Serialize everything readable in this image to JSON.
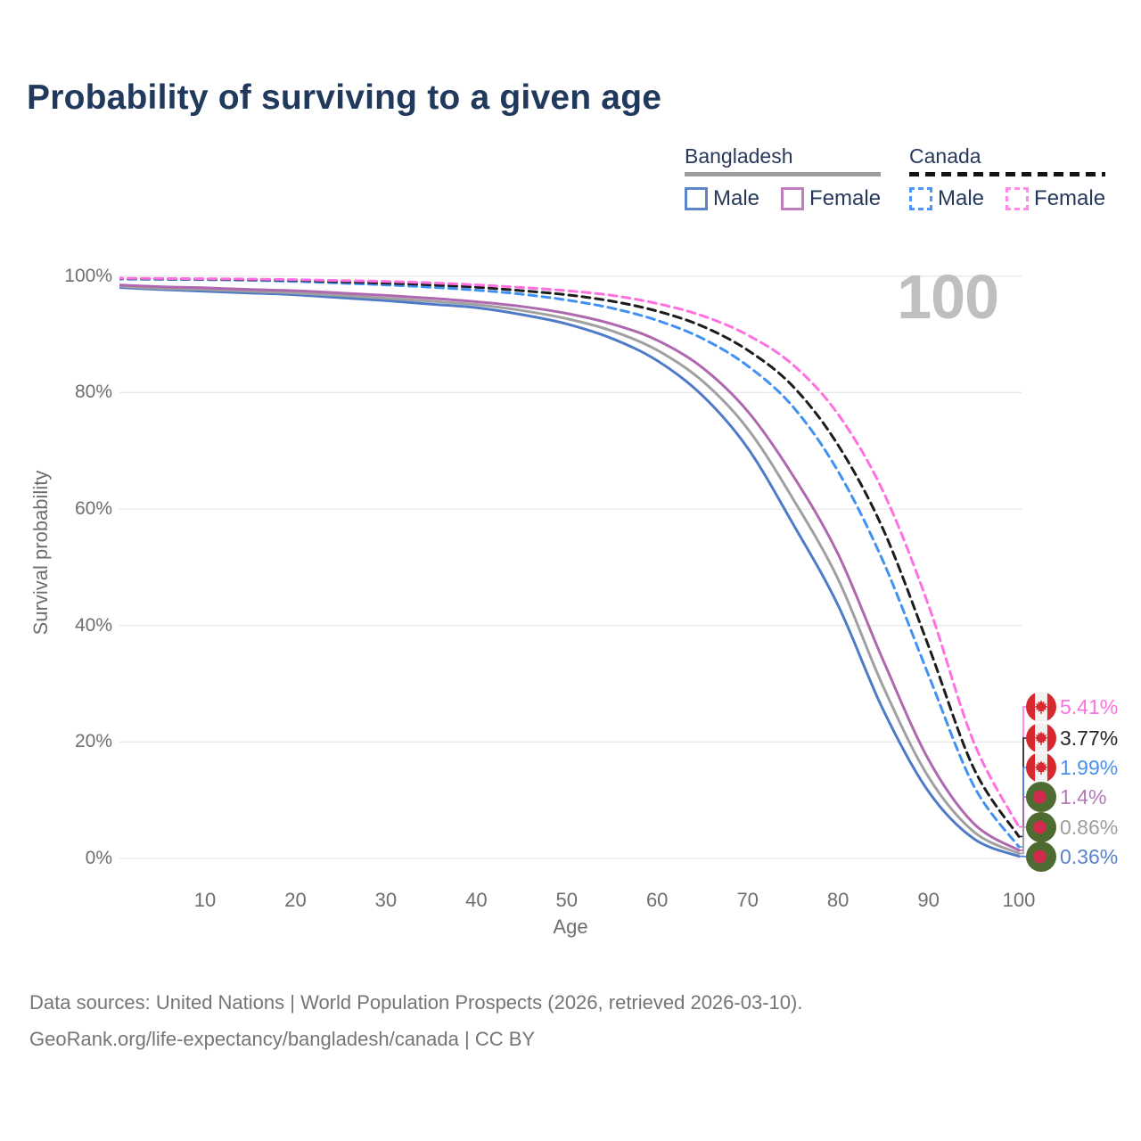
{
  "title": "Probability of surviving to a given age",
  "watermark": "100",
  "colors": {
    "title_text": "#21395c",
    "axis_text": "#6e6e6e",
    "gridline": "#e8e8e8",
    "watermark": "#bfbfbf",
    "footer_text": "#757575"
  },
  "legend": {
    "groups": [
      {
        "name": "Bangladesh",
        "line_style": "solid",
        "underline_color": "#9e9e9e",
        "items": [
          {
            "label": "Male",
            "color": "#5b84c6",
            "dashed": false
          },
          {
            "label": "Female",
            "color": "#c07fbc",
            "dashed": false
          }
        ]
      },
      {
        "name": "Canada",
        "line_style": "dashed",
        "underline_color": "#141414",
        "items": [
          {
            "label": "Male",
            "color": "#4d94ff",
            "dashed": true
          },
          {
            "label": "Female",
            "color": "#ff8ae8",
            "dashed": true
          }
        ]
      }
    ]
  },
  "chart_data": {
    "type": "line",
    "title": "Probability of surviving to a given age",
    "xlabel": "Age",
    "ylabel": "Survival probability",
    "xlim": [
      0,
      100
    ],
    "ylim": [
      0,
      100
    ],
    "grid": "horizontal",
    "legend_position": "top-right",
    "x_ticks": [
      10,
      20,
      30,
      40,
      50,
      60,
      70,
      80,
      90,
      100
    ],
    "y_ticks": [
      {
        "value": 0,
        "label": "0%"
      },
      {
        "value": 20,
        "label": "20%"
      },
      {
        "value": 40,
        "label": "40%"
      },
      {
        "value": 60,
        "label": "60%"
      },
      {
        "value": 80,
        "label": "80%"
      },
      {
        "value": 100,
        "label": "100%"
      }
    ],
    "highlighted_age": "100",
    "series": [
      {
        "id": "canada-female",
        "name": "Canada Female",
        "country": "Canada",
        "sex": "Female",
        "color": "#ff70e0",
        "dashed": true,
        "flag": "canada",
        "end_value": 5.41,
        "end_label": "5.41%",
        "label_color": "#ff70e0",
        "points": [
          [
            0,
            99.65
          ],
          [
            5,
            99.6
          ],
          [
            10,
            99.55
          ],
          [
            15,
            99.5
          ],
          [
            20,
            99.4
          ],
          [
            25,
            99.25
          ],
          [
            30,
            99.1
          ],
          [
            35,
            98.85
          ],
          [
            40,
            98.5
          ],
          [
            45,
            98.05
          ],
          [
            50,
            97.5
          ],
          [
            55,
            96.7
          ],
          [
            60,
            95.3
          ],
          [
            65,
            93.2
          ],
          [
            70,
            89.9
          ],
          [
            75,
            84.8
          ],
          [
            80,
            76.3
          ],
          [
            85,
            63.0
          ],
          [
            90,
            43.5
          ],
          [
            95,
            20.0
          ],
          [
            100,
            5.41
          ]
        ]
      },
      {
        "id": "canada-both",
        "name": "Canada Both sexes",
        "country": "Canada",
        "sex": "Both",
        "color": "#1c1c1c",
        "dashed": true,
        "flag": "canada",
        "end_value": 3.77,
        "end_label": "3.77%",
        "label_color": "#262626",
        "points": [
          [
            0,
            99.6
          ],
          [
            5,
            99.55
          ],
          [
            10,
            99.5
          ],
          [
            15,
            99.4
          ],
          [
            20,
            99.3
          ],
          [
            25,
            99.05
          ],
          [
            30,
            98.8
          ],
          [
            35,
            98.5
          ],
          [
            40,
            98.1
          ],
          [
            45,
            97.5
          ],
          [
            50,
            96.8
          ],
          [
            55,
            95.7
          ],
          [
            60,
            94.0
          ],
          [
            65,
            91.4
          ],
          [
            70,
            87.3
          ],
          [
            75,
            81.1
          ],
          [
            80,
            71.0
          ],
          [
            85,
            56.5
          ],
          [
            90,
            36.5
          ],
          [
            95,
            15.5
          ],
          [
            100,
            3.77
          ]
        ]
      },
      {
        "id": "canada-male",
        "name": "Canada Male",
        "country": "Canada",
        "sex": "Male",
        "color": "#4191f2",
        "dashed": true,
        "flag": "canada",
        "end_value": 1.99,
        "end_label": "1.99%",
        "label_color": "#4a90ee",
        "points": [
          [
            0,
            99.5
          ],
          [
            5,
            99.45
          ],
          [
            10,
            99.4
          ],
          [
            15,
            99.3
          ],
          [
            20,
            99.1
          ],
          [
            25,
            98.8
          ],
          [
            30,
            98.5
          ],
          [
            35,
            98.1
          ],
          [
            40,
            97.6
          ],
          [
            45,
            96.9
          ],
          [
            50,
            95.9
          ],
          [
            55,
            94.5
          ],
          [
            60,
            92.4
          ],
          [
            65,
            89.3
          ],
          [
            70,
            84.6
          ],
          [
            75,
            77.6
          ],
          [
            80,
            66.5
          ],
          [
            85,
            51.0
          ],
          [
            90,
            31.5
          ],
          [
            95,
            12.5
          ],
          [
            100,
            1.99
          ]
        ]
      },
      {
        "id": "bangladesh-female",
        "name": "Bangladesh Female",
        "country": "Bangladesh",
        "sex": "Female",
        "color": "#af68af",
        "dashed": false,
        "flag": "bangladesh",
        "end_value": 1.4,
        "end_label": "1.4%",
        "label_color": "#b478b4",
        "points": [
          [
            0,
            98.5
          ],
          [
            5,
            98.2
          ],
          [
            10,
            98.0
          ],
          [
            15,
            97.7
          ],
          [
            20,
            97.5
          ],
          [
            25,
            97.1
          ],
          [
            30,
            96.7
          ],
          [
            35,
            96.2
          ],
          [
            40,
            95.6
          ],
          [
            45,
            94.8
          ],
          [
            50,
            93.6
          ],
          [
            55,
            91.8
          ],
          [
            60,
            89.0
          ],
          [
            65,
            84.3
          ],
          [
            70,
            76.8
          ],
          [
            75,
            65.8
          ],
          [
            80,
            52.3
          ],
          [
            85,
            34.0
          ],
          [
            90,
            17.0
          ],
          [
            95,
            6.0
          ],
          [
            100,
            1.4
          ]
        ]
      },
      {
        "id": "bangladesh-both",
        "name": "Bangladesh Both sexes",
        "country": "Bangladesh",
        "sex": "Both",
        "color": "#a0a0a0",
        "dashed": false,
        "flag": "bangladesh",
        "end_value": 0.86,
        "end_label": "0.86%",
        "label_color": "#9e9e9e",
        "points": [
          [
            0,
            98.3
          ],
          [
            5,
            97.9
          ],
          [
            10,
            97.7
          ],
          [
            15,
            97.4
          ],
          [
            20,
            97.1
          ],
          [
            25,
            96.7
          ],
          [
            30,
            96.2
          ],
          [
            35,
            95.7
          ],
          [
            40,
            95.1
          ],
          [
            45,
            94.1
          ],
          [
            50,
            92.7
          ],
          [
            55,
            90.6
          ],
          [
            60,
            87.3
          ],
          [
            65,
            82.0
          ],
          [
            70,
            73.8
          ],
          [
            75,
            61.8
          ],
          [
            80,
            48.0
          ],
          [
            85,
            29.5
          ],
          [
            90,
            14.0
          ],
          [
            95,
            4.6
          ],
          [
            100,
            0.86
          ]
        ]
      },
      {
        "id": "bangladesh-male",
        "name": "Bangladesh Male",
        "country": "Bangladesh",
        "sex": "Male",
        "color": "#4e7ac7",
        "dashed": false,
        "flag": "bangladesh",
        "end_value": 0.36,
        "end_label": "0.36%",
        "label_color": "#5a82cc",
        "points": [
          [
            0,
            98.1
          ],
          [
            5,
            97.7
          ],
          [
            10,
            97.4
          ],
          [
            15,
            97.1
          ],
          [
            20,
            96.8
          ],
          [
            25,
            96.3
          ],
          [
            30,
            95.8
          ],
          [
            35,
            95.2
          ],
          [
            40,
            94.6
          ],
          [
            45,
            93.4
          ],
          [
            50,
            91.8
          ],
          [
            55,
            89.3
          ],
          [
            60,
            85.5
          ],
          [
            65,
            79.5
          ],
          [
            70,
            70.5
          ],
          [
            75,
            57.5
          ],
          [
            80,
            43.5
          ],
          [
            85,
            25.5
          ],
          [
            90,
            11.5
          ],
          [
            95,
            3.4
          ],
          [
            100,
            0.36
          ]
        ]
      }
    ]
  },
  "flags": {
    "canada": {
      "red": "#d6292f",
      "white": "#f2f2f2"
    },
    "bangladesh": {
      "green": "#4e6b31",
      "red": "#d02b4c"
    }
  },
  "footer": {
    "line1": "Data sources: United Nations | World Population Prospects (2026, retrieved 2026-03-10).",
    "line2": "GeoRank.org/life-expectancy/bangladesh/canada | CC BY"
  }
}
